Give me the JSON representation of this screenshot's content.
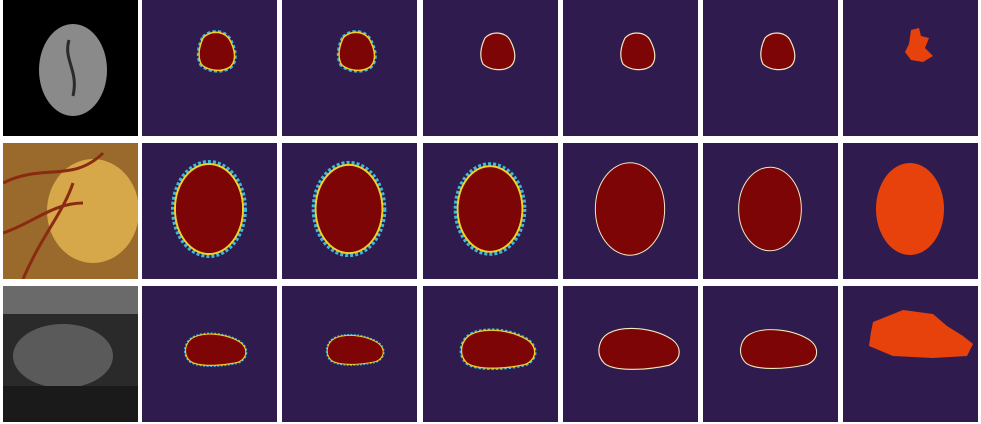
{
  "figure": {
    "rows": [
      {
        "modality": "brain-mri"
      },
      {
        "modality": "fundus-optic-disc"
      },
      {
        "modality": "ultrasound"
      }
    ],
    "columns_per_row": 7
  },
  "colors": {
    "background_map": "#2f1b4e",
    "prediction_core": "#7d0505",
    "prediction_edge_warm": "#f5d020",
    "prediction_edge_cool": "#3fb8d8",
    "ground_truth": "#e8420c",
    "mri_background": "#000000",
    "fundus_background": "#9a6a2c",
    "ultrasound_background": "#2a2a2a"
  }
}
